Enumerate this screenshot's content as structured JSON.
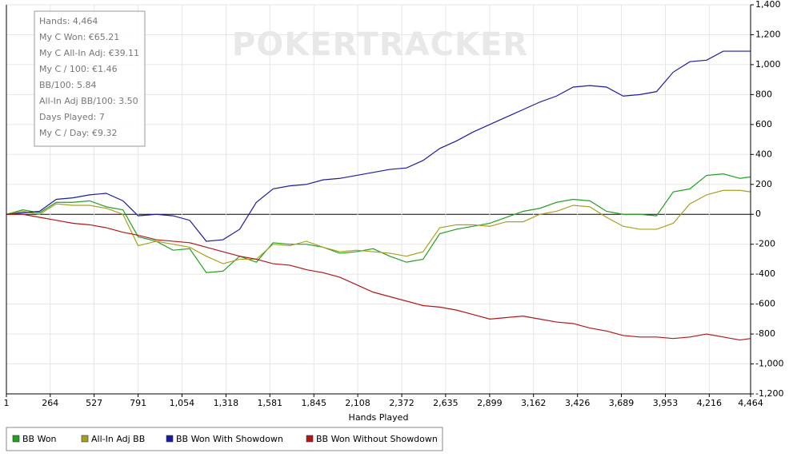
{
  "chart_data": {
    "type": "line",
    "watermark": "POKERTRACKER",
    "stats": [
      "Hands: 4,464",
      "My C Won: €65.21",
      "My C All-In Adj: €39.11",
      "My C / 100: €1.46",
      "BB/100: 5.84",
      "All-In Adj BB/100: 3.50",
      "Days Played: 7",
      "My C / Day: €9.32"
    ],
    "x_label": "Hands Played",
    "grid": true,
    "xlim": [
      1,
      4464
    ],
    "xticks": [
      1,
      {
        "value": 264,
        "label": "264"
      },
      {
        "value": 527,
        "label": "527"
      },
      {
        "value": 791,
        "label": "791"
      },
      {
        "value": 1054,
        "label": "1,054"
      },
      {
        "value": 1318,
        "label": "1,318"
      },
      {
        "value": 1581,
        "label": "1,581"
      },
      {
        "value": 1845,
        "label": "1,845"
      },
      {
        "value": 2108,
        "label": "2,108"
      },
      {
        "value": 2372,
        "label": "2,372"
      },
      {
        "value": 2635,
        "label": "2,635"
      },
      {
        "value": 2899,
        "label": "2,899"
      },
      {
        "value": 3162,
        "label": "3,162"
      },
      {
        "value": 3426,
        "label": "3,426"
      },
      {
        "value": 3689,
        "label": "3,689"
      },
      {
        "value": 3953,
        "label": "3,953"
      },
      {
        "value": 4216,
        "label": "4,216"
      },
      {
        "value": 4464,
        "label": "4,464"
      }
    ],
    "ylim": [
      -1200,
      1400
    ],
    "yticks": [
      {
        "value": 1400,
        "label": "1,400"
      },
      {
        "value": 1200,
        "label": "1,200"
      },
      {
        "value": 1000,
        "label": "1,000"
      },
      800,
      600,
      400,
      200,
      0,
      -200,
      -400,
      -600,
      -800,
      {
        "value": -1000,
        "label": "-1,000"
      },
      {
        "value": -1200,
        "label": "-1,200"
      }
    ],
    "x": [
      1,
      100,
      200,
      300,
      400,
      500,
      600,
      700,
      791,
      900,
      1000,
      1100,
      1200,
      1300,
      1400,
      1500,
      1600,
      1700,
      1800,
      1900,
      2000,
      2100,
      2200,
      2300,
      2400,
      2500,
      2600,
      2700,
      2800,
      2900,
      3000,
      3100,
      3200,
      3300,
      3400,
      3500,
      3600,
      3700,
      3800,
      3900,
      4000,
      4100,
      4200,
      4300,
      4400,
      4464
    ],
    "series": [
      {
        "name": "BB Won",
        "color": "#22a022",
        "values": [
          0,
          30,
          10,
          80,
          80,
          90,
          50,
          30,
          -150,
          -180,
          -240,
          -230,
          -390,
          -380,
          -280,
          -320,
          -190,
          -200,
          -200,
          -220,
          -260,
          -250,
          -230,
          -280,
          -320,
          -300,
          -130,
          -100,
          -80,
          -60,
          -20,
          20,
          40,
          80,
          100,
          90,
          20,
          0,
          0,
          -10,
          150,
          170,
          260,
          270,
          240,
          250
        ]
      },
      {
        "name": "All-In Adj BB",
        "color": "#a8a020",
        "values": [
          0,
          20,
          0,
          70,
          60,
          60,
          40,
          0,
          -210,
          -180,
          -200,
          -220,
          -280,
          -330,
          -300,
          -300,
          -200,
          -210,
          -180,
          -220,
          -250,
          -240,
          -250,
          -260,
          -280,
          -250,
          -90,
          -70,
          -70,
          -80,
          -50,
          -50,
          0,
          20,
          60,
          50,
          -20,
          -80,
          -100,
          -100,
          -60,
          70,
          130,
          160,
          160,
          150
        ]
      },
      {
        "name": "BB Won With Showdown",
        "color": "#1c1ca0",
        "values": [
          0,
          10,
          20,
          100,
          110,
          130,
          140,
          90,
          -10,
          0,
          -10,
          -40,
          -180,
          -170,
          -100,
          80,
          170,
          190,
          200,
          230,
          240,
          260,
          280,
          300,
          310,
          360,
          440,
          490,
          550,
          600,
          650,
          700,
          750,
          790,
          850,
          860,
          850,
          790,
          800,
          820,
          950,
          1020,
          1030,
          1090,
          1090,
          1090
        ]
      },
      {
        "name": "BB Won Without Showdown",
        "color": "#b01818",
        "values": [
          0,
          0,
          -20,
          -40,
          -60,
          -70,
          -90,
          -120,
          -140,
          -170,
          -180,
          -190,
          -220,
          -250,
          -280,
          -300,
          -330,
          -340,
          -370,
          -390,
          -420,
          -470,
          -520,
          -550,
          -580,
          -610,
          -620,
          -640,
          -670,
          -700,
          -690,
          -680,
          -700,
          -720,
          -730,
          -760,
          -780,
          -810,
          -820,
          -820,
          -830,
          -820,
          -800,
          -820,
          -840,
          -830
        ]
      }
    ]
  }
}
